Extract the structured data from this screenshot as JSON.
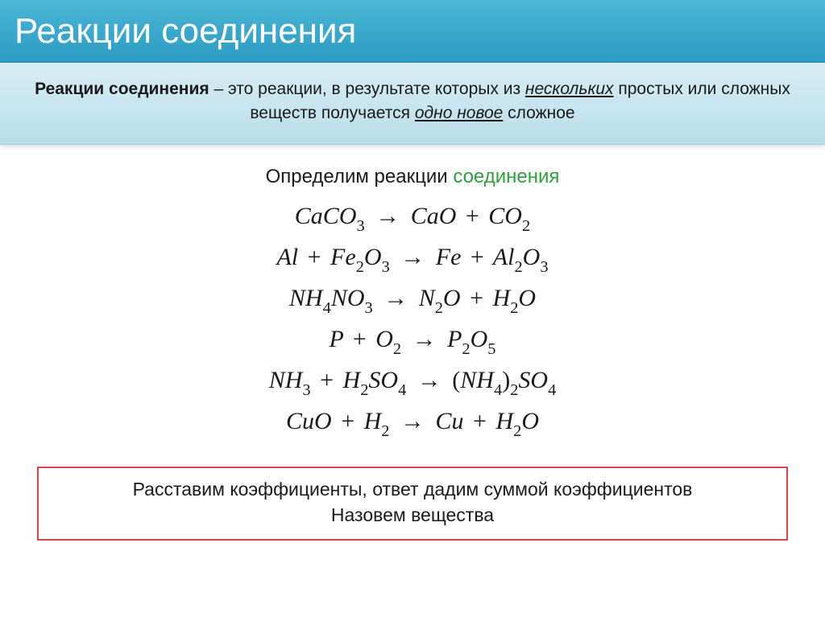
{
  "title": "Реакции соединения",
  "definition": {
    "bold_lead": "Реакции соединения",
    "part1": " – это реакции, в результате которых из ",
    "italic_underline1": "нескольких",
    "part2": " простых или сложных веществ получается ",
    "italic_underline2": "одно новое",
    "part3": " сложное"
  },
  "subtitle": {
    "black": "Определим реакции ",
    "green": "соединения"
  },
  "equations": [
    {
      "html": "CaCO<sub>3</sub> <span class='arrow'>→</span> CaO <span class='plus'>+</span> CO<sub>2</sub>"
    },
    {
      "html": "Al <span class='plus'>+</span> Fe<sub>2</sub>O<sub>3</sub> <span class='arrow'>→</span> Fe <span class='plus'>+</span> Al<sub>2</sub>O<sub>3</sub>"
    },
    {
      "html": "NH<sub>4</sub>NO<sub>3</sub> <span class='arrow'>→</span> N<sub>2</sub>O <span class='plus'>+</span> H<sub>2</sub>O"
    },
    {
      "html": "P <span class='plus'>+</span> O<sub>2</sub> <span class='arrow'>→</span> P<sub>2</sub>O<sub>5</sub>"
    },
    {
      "html": "NH<sub>3</sub> <span class='plus'>+</span> H<sub>2</sub>SO<sub>4</sub> <span class='arrow'>→</span> <span class='paren'>(</span>NH<sub>4</sub><span class='paren'>)</span><sub>2</sub>SO<sub>4</sub>"
    },
    {
      "html": "CuO <span class='plus'>+</span> H<sub>2</sub> <span class='arrow'>→</span> Cu <span class='plus'>+</span> H<sub>2</sub>O"
    }
  ],
  "instruction": {
    "line1": "Расставим коэффициенты, ответ дадим суммой коэффициентов",
    "line2": "Назовем вещества"
  },
  "colors": {
    "title_bg_top": "#4db8d8",
    "title_bg_bottom": "#2e9bc2",
    "def_bg_top": "#d8eef5",
    "def_bg_bottom": "#b8deea",
    "green": "#2e9e3e",
    "box_border": "#c94a4a",
    "text": "#1a1a1a"
  }
}
